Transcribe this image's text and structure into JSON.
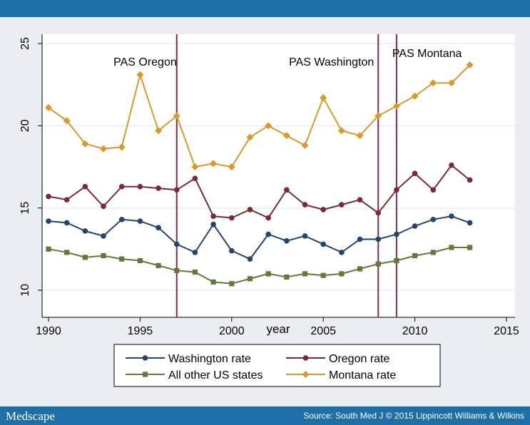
{
  "chart_data": {
    "type": "line",
    "xlabel": "year",
    "ylabel": "",
    "xlim": [
      1990,
      2015
    ],
    "ylim": [
      9.5,
      25.5
    ],
    "x_ticks": [
      "1990",
      "1995",
      "2000",
      "2005",
      "2010",
      "2015"
    ],
    "y_ticks": [
      "10",
      "15",
      "20",
      "25"
    ],
    "x": [
      1990,
      1991,
      1992,
      1993,
      1994,
      1995,
      1996,
      1997,
      1998,
      1999,
      2000,
      2001,
      2002,
      2003,
      2004,
      2005,
      2006,
      2007,
      2008,
      2009,
      2010,
      2011,
      2012,
      2013
    ],
    "series": [
      {
        "name": "Washington rate",
        "color": "#24466e",
        "marker": "circle",
        "values": [
          14.2,
          14.1,
          13.6,
          13.3,
          14.3,
          14.2,
          13.8,
          12.8,
          12.3,
          14.0,
          12.4,
          11.9,
          13.4,
          13.0,
          13.3,
          12.8,
          12.3,
          13.1,
          13.1,
          13.4,
          13.9,
          14.3,
          14.5,
          14.1
        ]
      },
      {
        "name": "Oregon rate",
        "color": "#7a2a32",
        "marker": "circle",
        "values": [
          15.7,
          15.5,
          16.3,
          15.1,
          16.3,
          16.3,
          16.2,
          16.1,
          16.8,
          14.5,
          14.4,
          14.9,
          14.4,
          16.1,
          15.2,
          14.9,
          15.2,
          15.5,
          14.7,
          16.1,
          17.1,
          16.1,
          17.6,
          16.7
        ]
      },
      {
        "name": "All other US states",
        "color": "#5f7a3a",
        "marker": "square",
        "values": [
          12.5,
          12.3,
          12.0,
          12.1,
          11.9,
          11.8,
          11.5,
          11.2,
          11.1,
          10.5,
          10.4,
          10.7,
          11.0,
          10.8,
          11.0,
          10.9,
          11.0,
          11.3,
          11.6,
          11.8,
          12.1,
          12.3,
          12.6,
          12.6
        ]
      },
      {
        "name": "Montana rate",
        "color": "#d99a2b",
        "marker": "diamond",
        "values": [
          21.1,
          20.3,
          18.9,
          18.6,
          18.7,
          23.1,
          19.7,
          20.6,
          17.5,
          17.7,
          17.5,
          19.3,
          20.0,
          19.4,
          18.8,
          21.7,
          19.7,
          19.4,
          20.6,
          21.2,
          21.8,
          22.6,
          22.6,
          23.7
        ]
      }
    ],
    "vlines": [
      {
        "x": 1997,
        "label": "PAS Oregon",
        "color": "#8a2a4a"
      },
      {
        "x": 2008,
        "label": "PAS Washington",
        "color": "#8a2a4a"
      },
      {
        "x": 2009,
        "label": "PAS Montana",
        "color": "#8a2a4a"
      }
    ],
    "grid": true,
    "legend_position": "bottom"
  },
  "footer": {
    "brand": "Medscape",
    "source": "Source: South Med J © 2015 Lippincott Williams & Wilkins"
  }
}
